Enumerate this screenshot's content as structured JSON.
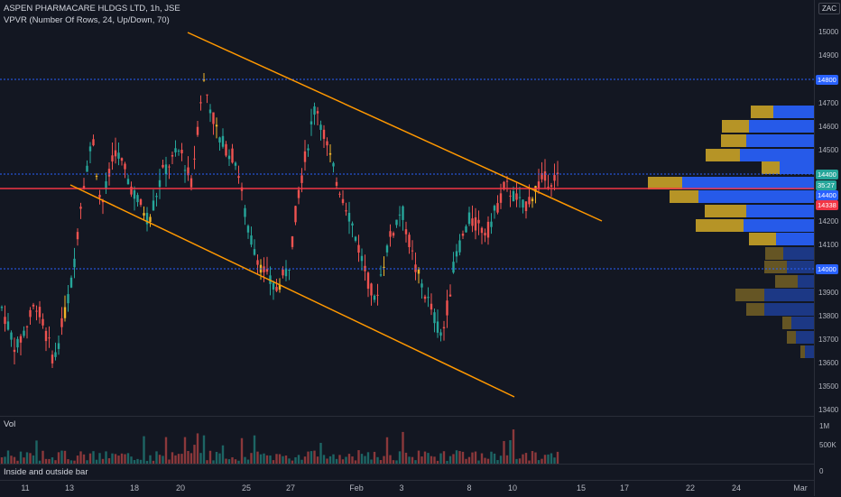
{
  "header": {
    "symbol_line": "ASPEN PHARMACARE HLDGS LTD, 1h, JSE",
    "indicator_line": "VPVR (Number Of Rows, 24, Up/Down, 70)"
  },
  "price_axis": {
    "currency": "ZAC",
    "ticks": [
      "15000",
      "14900",
      "14700",
      "14600",
      "14500",
      "14300",
      "14200",
      "14100",
      "13900",
      "13800",
      "13700",
      "13600",
      "13500",
      "13400"
    ],
    "labels": [
      {
        "text": "14800",
        "bg": "#2962ff",
        "fg": "#ffffff"
      },
      {
        "text": "14400",
        "bg": "#26a69a",
        "fg": "#ffffff"
      },
      {
        "text": "35:27",
        "bg": "#26a69a",
        "fg": "#ffffff"
      },
      {
        "text": "14400",
        "bg": "#2962ff",
        "fg": "#ffffff"
      },
      {
        "text": "14338",
        "bg": "#f23645",
        "fg": "#ffffff"
      },
      {
        "text": "14000",
        "bg": "#2962ff",
        "fg": "#ffffff"
      }
    ]
  },
  "volume": {
    "label": "Vol",
    "ticks": [
      "1M",
      "500K"
    ]
  },
  "indicator": {
    "label": "Inside and outside bar",
    "value": "0"
  },
  "time_axis": [
    "11",
    "13",
    "18",
    "20",
    "25",
    "27",
    "Feb",
    "3",
    "8",
    "10",
    "15",
    "17",
    "22",
    "24",
    "Mar"
  ],
  "colors": {
    "up": "#26a69a",
    "down": "#ef5350",
    "trendline": "#ff9800",
    "hline_red": "#f23645",
    "hline_blue": "#2962ff",
    "vp_up": "#2962ff",
    "vp_down": "#c9a227"
  },
  "chart_data": {
    "type": "candlestick",
    "x_range": [
      "11",
      "Mar"
    ],
    "y_range": [
      13400,
      15050
    ],
    "horizontal_levels": [
      14800,
      14400,
      14338,
      14000
    ],
    "volume_profile_rows": 24,
    "trend_channel": "descending",
    "grid": false
  }
}
